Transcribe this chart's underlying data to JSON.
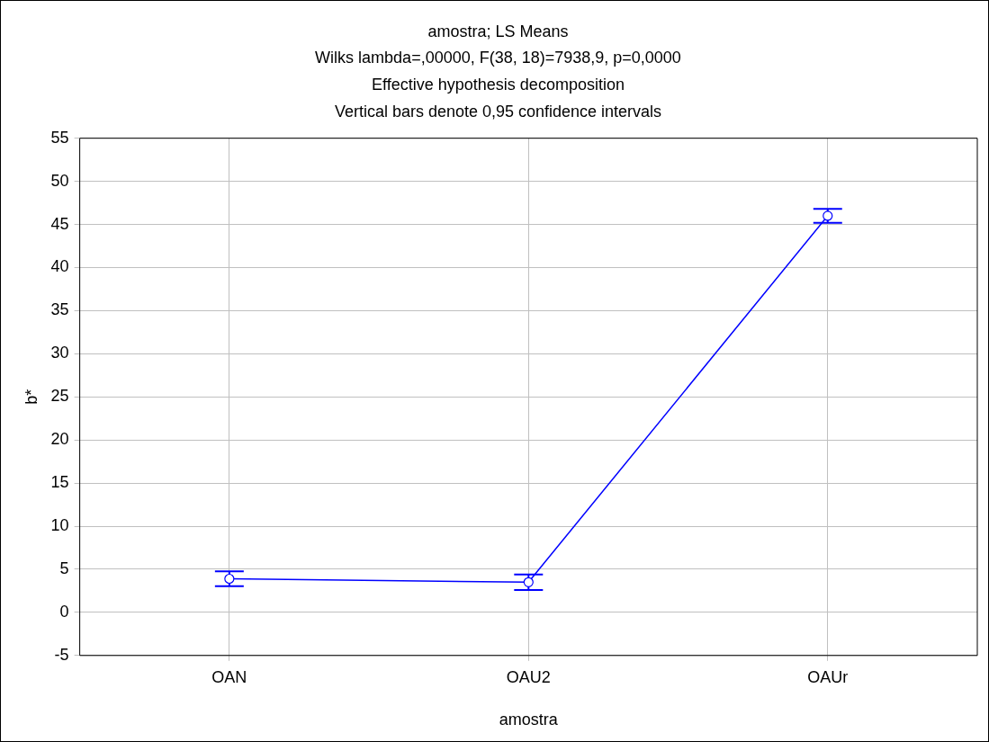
{
  "chart_data": {
    "type": "line",
    "title": "amostra; LS Means",
    "subtitle": "Wilks lambda=,00000, F(38, 18)=7938,9, p=0,0000",
    "annotations": [
      "Effective hypothesis decomposition",
      "Vertical bars denote 0,95 confidence intervals"
    ],
    "xlabel": "amostra",
    "ylabel": "b*",
    "categories": [
      "OAN",
      "OAU2",
      "OAUr"
    ],
    "series": [
      {
        "color": "#0000ff",
        "values": [
          3.9,
          3.5,
          46
        ],
        "errors": [
          0.85,
          0.9,
          0.8
        ]
      }
    ],
    "ylim": [
      -5,
      55
    ],
    "yticks": [
      -5,
      0,
      5,
      10,
      15,
      20,
      25,
      30,
      35,
      40,
      45,
      50,
      55
    ],
    "grid": true,
    "marker": "circle",
    "line_style": "solid",
    "legend": false
  }
}
